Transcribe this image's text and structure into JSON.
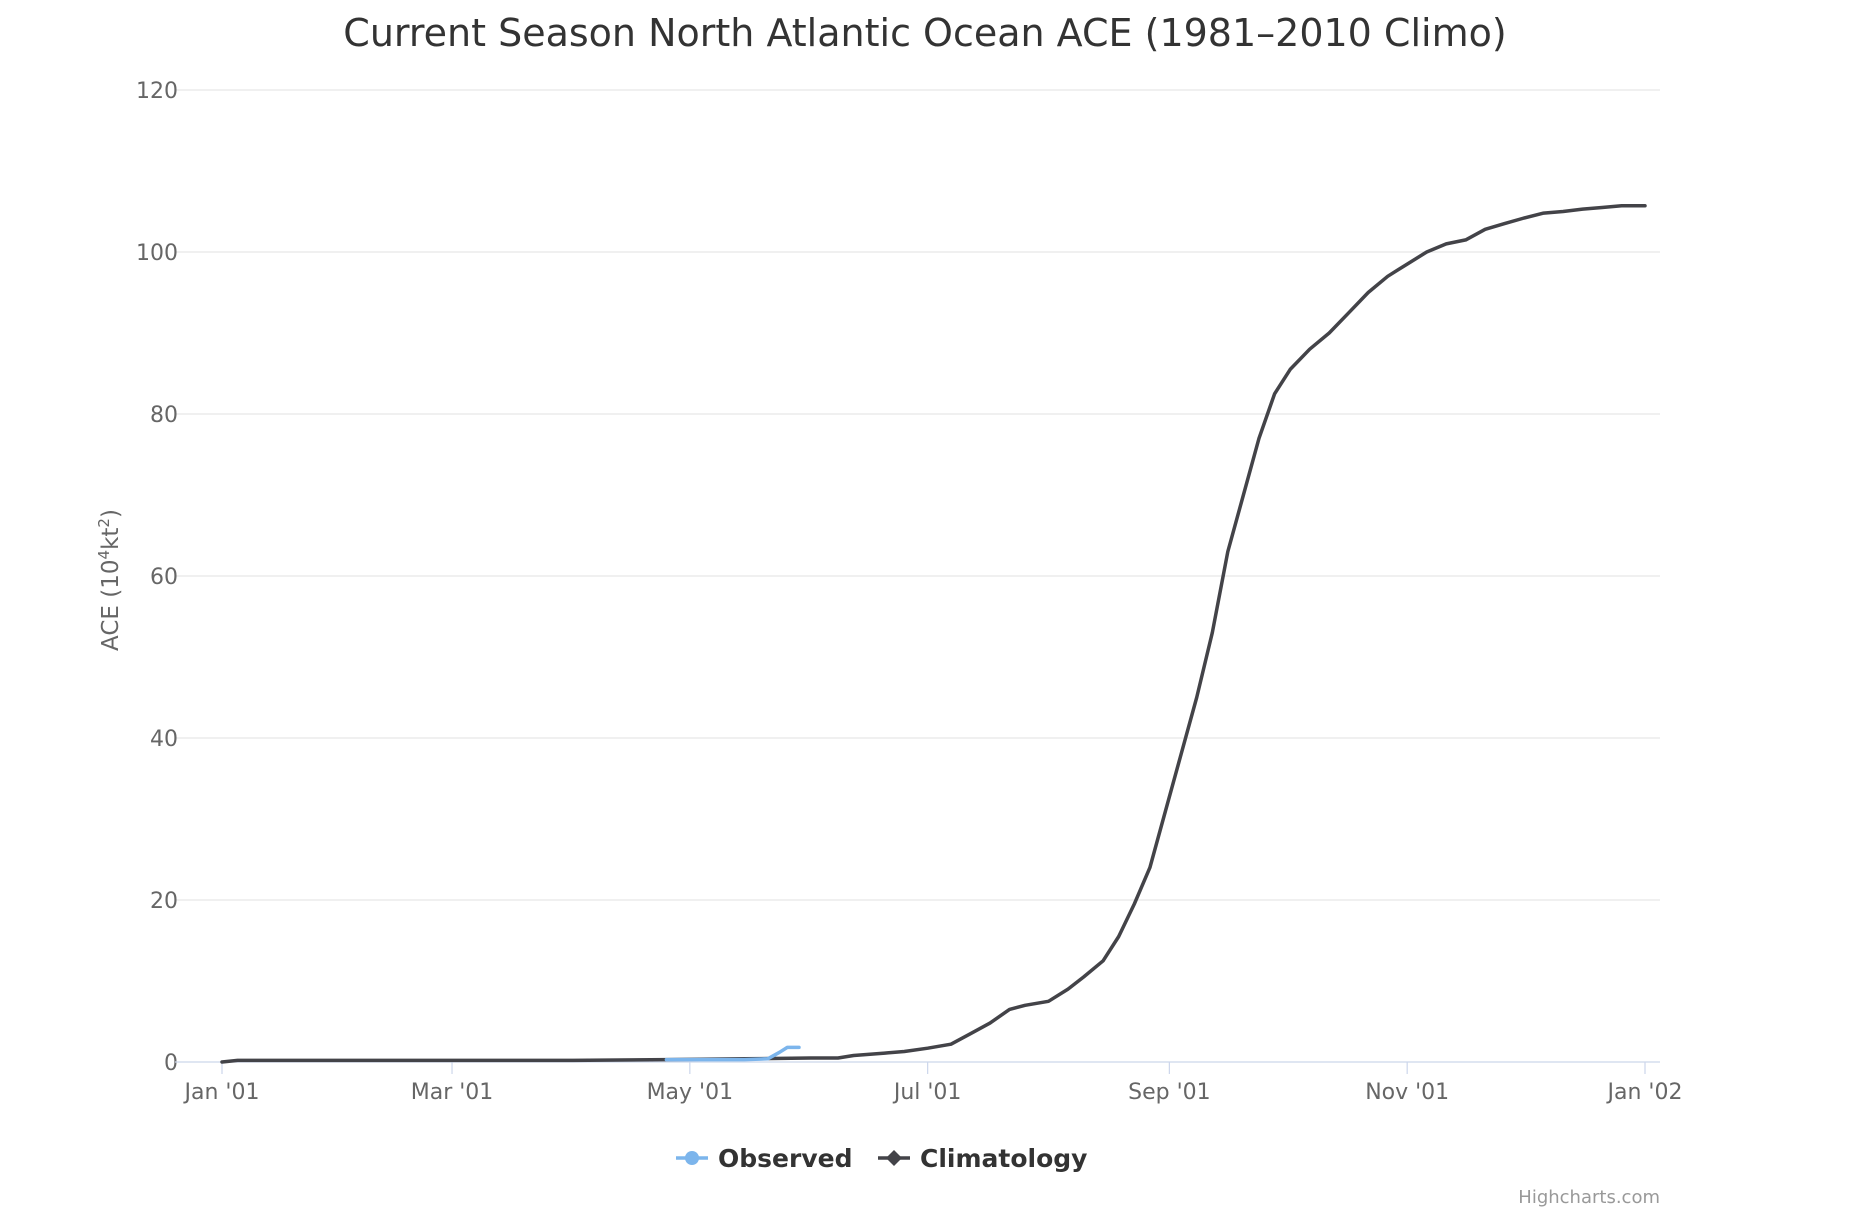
{
  "chart_data": {
    "type": "line",
    "title": "Current Season North Atlantic Ocean ACE (1981–2010 Climo)",
    "xlabel": "",
    "ylabel": "ACE (10",
    "ylabel_sup1": "4",
    "ylabel_mid": "kt",
    "ylabel_sup2": "2",
    "ylabel_end": ")",
    "xlim": [
      "2001-01-01",
      "2002-01-01"
    ],
    "ylim": [
      0,
      120
    ],
    "x_ticks": [
      {
        "date": "2001-01-01",
        "label": "Jan '01"
      },
      {
        "date": "2001-03-01",
        "label": "Mar '01"
      },
      {
        "date": "2001-05-01",
        "label": "May '01"
      },
      {
        "date": "2001-07-01",
        "label": "Jul '01"
      },
      {
        "date": "2001-09-01",
        "label": "Sep '01"
      },
      {
        "date": "2001-11-01",
        "label": "Nov '01"
      },
      {
        "date": "2002-01-01",
        "label": "Jan '02"
      }
    ],
    "y_ticks": [
      0,
      20,
      40,
      60,
      80,
      100,
      120
    ],
    "grid": true,
    "legend_position": "bottom-center",
    "series": [
      {
        "name": "Observed",
        "color": "#7cb5ec",
        "marker": "circle",
        "points": [
          [
            "2001-04-25",
            0.3
          ],
          [
            "2001-05-05",
            0.3
          ],
          [
            "2001-05-15",
            0.3
          ],
          [
            "2001-05-21",
            0.4
          ],
          [
            "2001-05-24",
            1.2
          ],
          [
            "2001-05-26",
            1.8
          ],
          [
            "2001-05-29",
            1.8
          ]
        ]
      },
      {
        "name": "Climatology",
        "color": "#434348",
        "marker": "diamond",
        "points": [
          [
            "2001-01-01",
            0.0
          ],
          [
            "2001-01-05",
            0.2
          ],
          [
            "2001-02-01",
            0.2
          ],
          [
            "2001-03-01",
            0.2
          ],
          [
            "2001-04-01",
            0.2
          ],
          [
            "2001-04-25",
            0.3
          ],
          [
            "2001-05-15",
            0.4
          ],
          [
            "2001-06-01",
            0.5
          ],
          [
            "2001-06-08",
            0.5
          ],
          [
            "2001-06-12",
            0.8
          ],
          [
            "2001-06-20",
            1.1
          ],
          [
            "2001-06-25",
            1.3
          ],
          [
            "2001-07-01",
            1.7
          ],
          [
            "2001-07-07",
            2.2
          ],
          [
            "2001-07-12",
            3.5
          ],
          [
            "2001-07-17",
            4.8
          ],
          [
            "2001-07-22",
            6.5
          ],
          [
            "2001-07-26",
            7.0
          ],
          [
            "2001-08-01",
            7.5
          ],
          [
            "2001-08-06",
            9.0
          ],
          [
            "2001-08-10",
            10.5
          ],
          [
            "2001-08-15",
            12.5
          ],
          [
            "2001-08-19",
            15.5
          ],
          [
            "2001-08-23",
            19.5
          ],
          [
            "2001-08-27",
            24.0
          ],
          [
            "2001-08-31",
            31.0
          ],
          [
            "2001-09-04",
            38.0
          ],
          [
            "2001-09-08",
            45.0
          ],
          [
            "2001-09-12",
            53.0
          ],
          [
            "2001-09-16",
            63.0
          ],
          [
            "2001-09-20",
            70.0
          ],
          [
            "2001-09-24",
            77.0
          ],
          [
            "2001-09-28",
            82.5
          ],
          [
            "2001-10-02",
            85.5
          ],
          [
            "2001-10-07",
            88.0
          ],
          [
            "2001-10-12",
            90.0
          ],
          [
            "2001-10-17",
            92.5
          ],
          [
            "2001-10-22",
            95.0
          ],
          [
            "2001-10-27",
            97.0
          ],
          [
            "2001-11-01",
            98.5
          ],
          [
            "2001-11-06",
            100.0
          ],
          [
            "2001-11-11",
            101.0
          ],
          [
            "2001-11-16",
            101.5
          ],
          [
            "2001-11-21",
            102.8
          ],
          [
            "2001-11-26",
            103.5
          ],
          [
            "2001-12-01",
            104.2
          ],
          [
            "2001-12-06",
            104.8
          ],
          [
            "2001-12-11",
            105.0
          ],
          [
            "2001-12-16",
            105.3
          ],
          [
            "2001-12-21",
            105.5
          ],
          [
            "2001-12-26",
            105.7
          ],
          [
            "2002-01-01",
            105.7
          ]
        ]
      }
    ]
  },
  "credit": "Highcharts.com"
}
